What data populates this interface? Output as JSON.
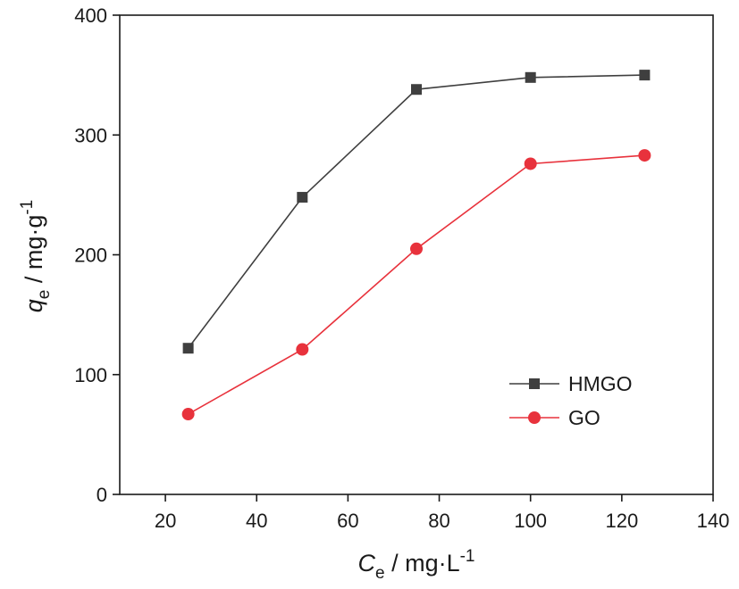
{
  "chart_data": {
    "type": "line",
    "xlabel": {
      "symbol": "C",
      "subscript": "e",
      "unit": "mg·L",
      "exponent": "-1"
    },
    "ylabel": {
      "symbol": "q",
      "subscript": "e",
      "unit": "mg·g",
      "exponent": "-1"
    },
    "xlim": [
      10,
      140
    ],
    "ylim": [
      0,
      400
    ],
    "xticks": [
      20,
      40,
      60,
      80,
      100,
      120,
      140
    ],
    "yticks": [
      0,
      100,
      200,
      300,
      400
    ],
    "grid": false,
    "legend_position": "lower-right",
    "series": [
      {
        "name": "HMGO",
        "marker": "square",
        "color": "#3f3f3f",
        "x": [
          25,
          50,
          75,
          100,
          125
        ],
        "y": [
          122,
          248,
          338,
          348,
          350
        ]
      },
      {
        "name": "GO",
        "marker": "circle",
        "color": "#e8323c",
        "x": [
          25,
          50,
          75,
          100,
          125
        ],
        "y": [
          67,
          121,
          205,
          276,
          283
        ]
      }
    ]
  }
}
